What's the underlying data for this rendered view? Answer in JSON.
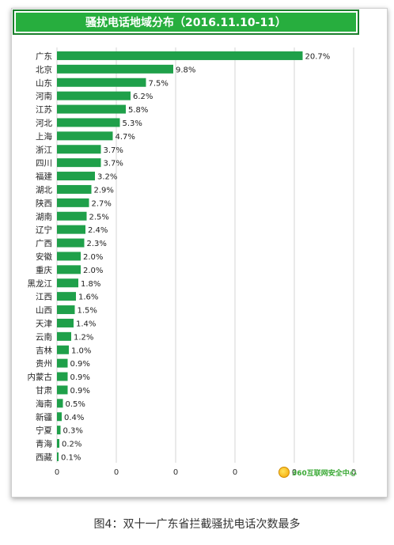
{
  "chart_data": {
    "type": "bar",
    "orientation": "horizontal",
    "title": "骚扰电话地域分布（2016.11.10-11）",
    "categories": [
      "广东",
      "北京",
      "山东",
      "河南",
      "江苏",
      "河北",
      "上海",
      "浙江",
      "四川",
      "福建",
      "湖北",
      "陕西",
      "湖南",
      "辽宁",
      "广西",
      "安徽",
      "重庆",
      "黑龙江",
      "江西",
      "山西",
      "天津",
      "云南",
      "吉林",
      "贵州",
      "内蒙古",
      "甘肃",
      "海南",
      "新疆",
      "宁夏",
      "青海",
      "西藏"
    ],
    "values": [
      20.7,
      9.8,
      7.5,
      6.2,
      5.8,
      5.3,
      4.7,
      3.7,
      3.7,
      3.2,
      2.9,
      2.7,
      2.5,
      2.4,
      2.3,
      2.0,
      2.0,
      1.8,
      1.6,
      1.5,
      1.4,
      1.2,
      1.0,
      0.9,
      0.9,
      0.9,
      0.5,
      0.4,
      0.3,
      0.2,
      0.1
    ],
    "value_labels": [
      "20.7%",
      "9.8%",
      "7.5%",
      "6.2%",
      "5.8%",
      "5.3%",
      "4.7%",
      "3.7%",
      "3.7%",
      "3.2%",
      "2.9%",
      "2.7%",
      "2.5%",
      "2.4%",
      "2.3%",
      "2.0%",
      "2.0%",
      "1.8%",
      "1.6%",
      "1.5%",
      "1.4%",
      "1.2%",
      "1.0%",
      "0.9%",
      "0.9%",
      "0.9%",
      "0.5%",
      "0.4%",
      "0.3%",
      "0.2%",
      "0.1%"
    ],
    "x_ticks": [
      "0",
      "0",
      "0",
      "0",
      "0",
      "0"
    ],
    "xlim": [
      0,
      25
    ],
    "grid": true,
    "bar_color": "#1fa04a"
  },
  "logo": {
    "text": "360互联网安全中心",
    "icon": "360-logo-icon"
  },
  "caption": "图4：双十一广东省拦截骚扰电话次数最多"
}
